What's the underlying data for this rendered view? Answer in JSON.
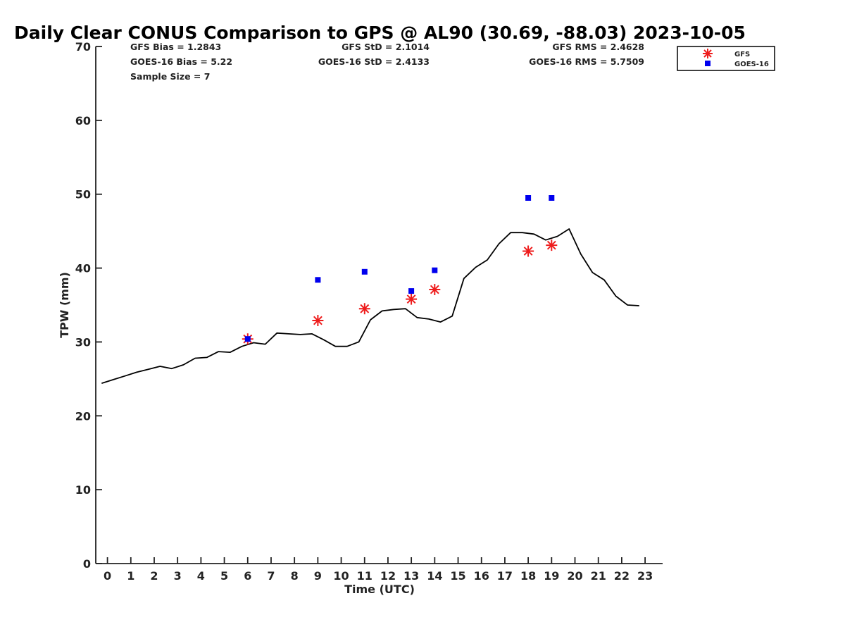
{
  "chart_data": {
    "type": "line",
    "title": "Daily Clear CONUS Comparison to GPS @ AL90 (30.69, -88.03) 2023-10-05",
    "xlabel": "Time (UTC)",
    "ylabel": "TPW (mm)",
    "xlim": [
      -0.5,
      23.75
    ],
    "ylim": [
      0,
      70
    ],
    "x_ticks": [
      0,
      1,
      2,
      3,
      4,
      5,
      6,
      7,
      8,
      9,
      10,
      11,
      12,
      13,
      14,
      15,
      16,
      17,
      18,
      19,
      20,
      21,
      22,
      23
    ],
    "x_tick_labels": [
      "0",
      "1",
      "2",
      "3",
      "4",
      "5",
      "6",
      "7",
      "8",
      "9",
      "10",
      "11",
      "12",
      "13",
      "14",
      "15",
      "16",
      "17",
      "18",
      "19",
      "20",
      "21",
      "22",
      "23"
    ],
    "y_ticks": [
      0,
      10,
      20,
      30,
      40,
      50,
      60,
      70
    ],
    "y_tick_labels": [
      "0",
      "10",
      "20",
      "30",
      "40",
      "50",
      "60",
      "70"
    ],
    "grid": false,
    "legend_position": "top-right",
    "stats": {
      "gfs_bias": "GFS Bias = 1.2843",
      "goes_bias": "GOES-16 Bias = 5.22",
      "sample_size": "Sample Size = 7",
      "gfs_std": "GFS StD = 2.1014",
      "goes_std": "GOES-16 StD = 2.4133",
      "gfs_rms": "GFS RMS = 2.4628",
      "goes_rms": "GOES-16 RMS = 5.7509"
    },
    "series": [
      {
        "kind": "line",
        "color": "#000000",
        "x": [
          -0.25,
          0.25,
          0.75,
          1.25,
          1.75,
          2.25,
          2.75,
          3.25,
          3.75,
          4.25,
          4.75,
          5.25,
          5.75,
          6.25,
          6.75,
          7.25,
          7.75,
          8.25,
          8.75,
          9.25,
          9.75,
          10.25,
          10.75,
          11.25,
          11.75,
          12.25,
          12.75,
          13.25,
          13.75,
          14.25,
          14.75,
          15.25,
          15.75,
          16.25,
          16.75,
          17.25,
          17.75,
          18.25,
          18.75,
          19.25,
          19.75,
          20.25,
          20.75,
          21.25,
          21.75,
          22.25,
          22.75
        ],
        "y": [
          24.4,
          24.9,
          25.4,
          25.9,
          26.3,
          26.7,
          26.4,
          26.9,
          27.8,
          27.9,
          28.7,
          28.6,
          29.4,
          29.9,
          29.7,
          31.2,
          31.1,
          31.0,
          31.1,
          30.3,
          29.4,
          29.4,
          30.0,
          33.0,
          34.2,
          34.4,
          34.5,
          33.3,
          33.1,
          32.7,
          33.5,
          38.6,
          40.1,
          41.1,
          43.3,
          44.8,
          44.8,
          44.6,
          43.8,
          44.3,
          45.3,
          41.9,
          39.4,
          38.4,
          36.2,
          35.0,
          34.9
        ]
      },
      {
        "name": "GFS",
        "kind": "scatter",
        "marker": "asterisk",
        "color": "#ee1c1c",
        "x": [
          6,
          9,
          11,
          13,
          14,
          18,
          19
        ],
        "y": [
          30.4,
          32.9,
          34.5,
          35.8,
          37.1,
          42.3,
          43.1
        ]
      },
      {
        "name": "GOES-16",
        "kind": "scatter",
        "marker": "square",
        "color": "#0000ee",
        "x": [
          6,
          9,
          11,
          13,
          14,
          18,
          19
        ],
        "y": [
          30.4,
          38.4,
          39.5,
          36.9,
          39.7,
          49.5,
          49.5
        ]
      }
    ]
  }
}
